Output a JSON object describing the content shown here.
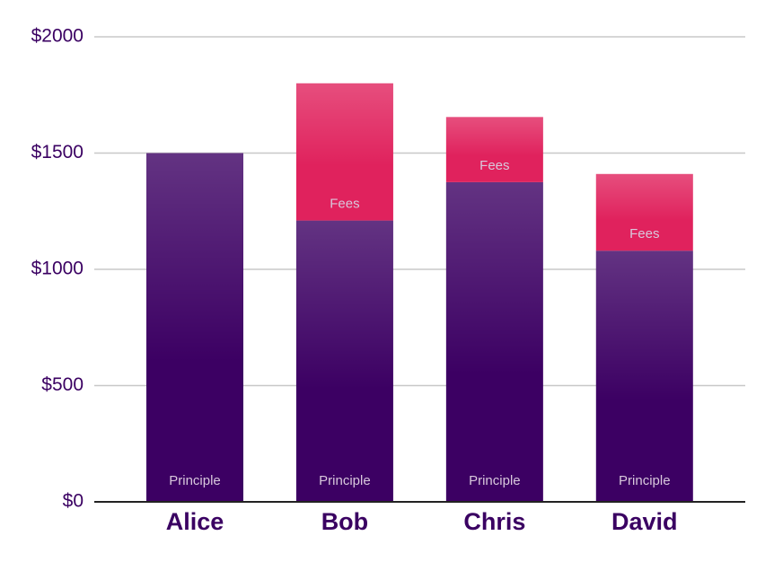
{
  "chart_data": {
    "type": "stacked_bar",
    "categories": [
      "Alice",
      "Bob",
      "Chris",
      "David"
    ],
    "series": [
      {
        "name": "Principle",
        "color": "#3c0063",
        "values": [
          1500,
          1210,
          1375,
          1080
        ]
      },
      {
        "name": "Fees",
        "color": "#e0225d",
        "values": [
          null,
          590,
          280,
          330
        ]
      }
    ],
    "ylim": [
      0,
      2000
    ],
    "yticks": [
      {
        "value": 0,
        "label": "$0"
      },
      {
        "value": 500,
        "label": "$500"
      },
      {
        "value": 1000,
        "label": "$1000"
      },
      {
        "value": 1500,
        "label": "$1500"
      },
      {
        "value": 2000,
        "label": "$2000"
      }
    ],
    "grid": true
  }
}
